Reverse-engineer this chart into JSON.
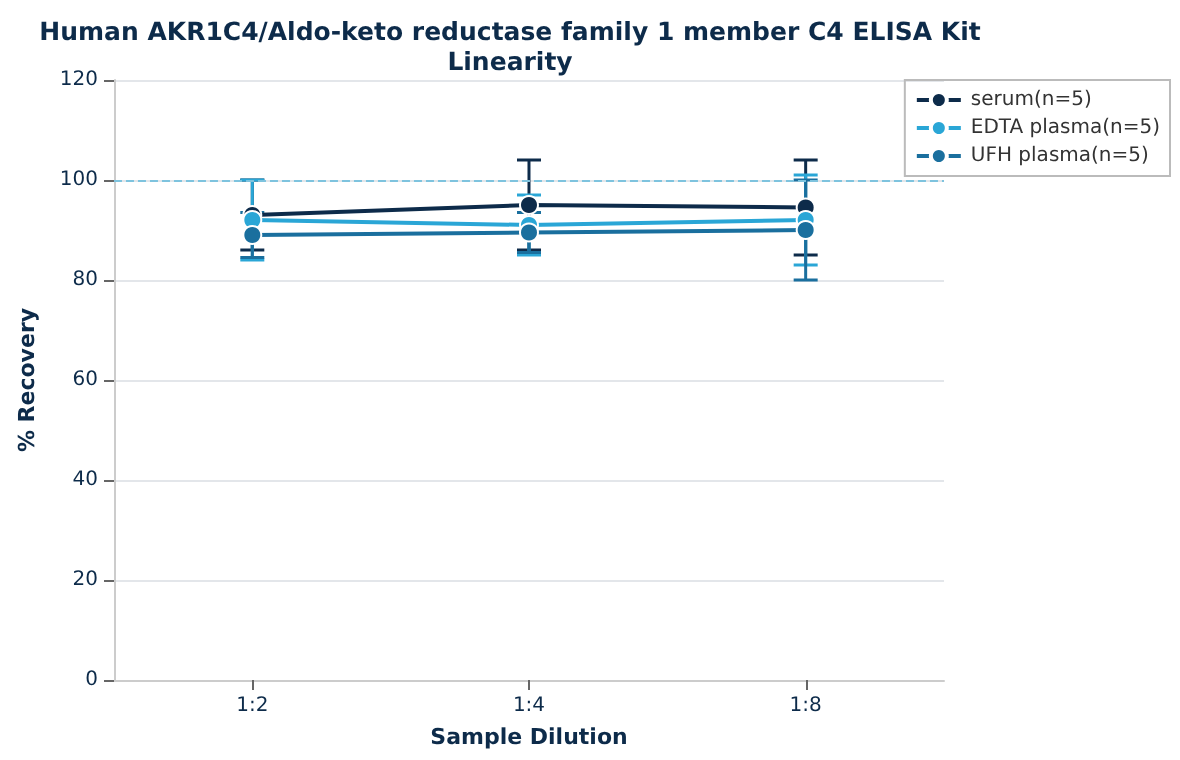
{
  "chart_data": {
    "type": "line",
    "title": "Human AKR1C4/Aldo-keto reductase family 1 member C4 ELISA Kit",
    "subtitle": "Linearity",
    "xlabel": "Sample Dilution",
    "ylabel": "% Recovery",
    "categories": [
      "1:2",
      "1:4",
      "1:8"
    ],
    "series": [
      {
        "name": "serum(n=5)",
        "color": "#0d2b4a",
        "values": [
          93,
          95,
          94.5
        ],
        "errors": [
          7,
          9,
          9.5
        ]
      },
      {
        "name": "EDTA plasma(n=5)",
        "color": "#2aa6d6",
        "values": [
          92,
          91,
          92
        ],
        "errors": [
          8,
          6,
          9
        ]
      },
      {
        "name": "UFH plasma(n=5)",
        "color": "#1a6f9e",
        "values": [
          89,
          89.5,
          90
        ],
        "errors": [
          4.5,
          4,
          10
        ]
      }
    ],
    "ylim": [
      0,
      120
    ],
    "yticks": [
      0,
      20,
      40,
      60,
      80,
      100,
      120
    ],
    "grid": "y",
    "legend": "top right",
    "marker": "circle",
    "line_style": "solid",
    "ref_lines": [
      {
        "axis": "y",
        "value": 100,
        "color": "#7ec3de",
        "line_style": "dashed"
      }
    ]
  }
}
